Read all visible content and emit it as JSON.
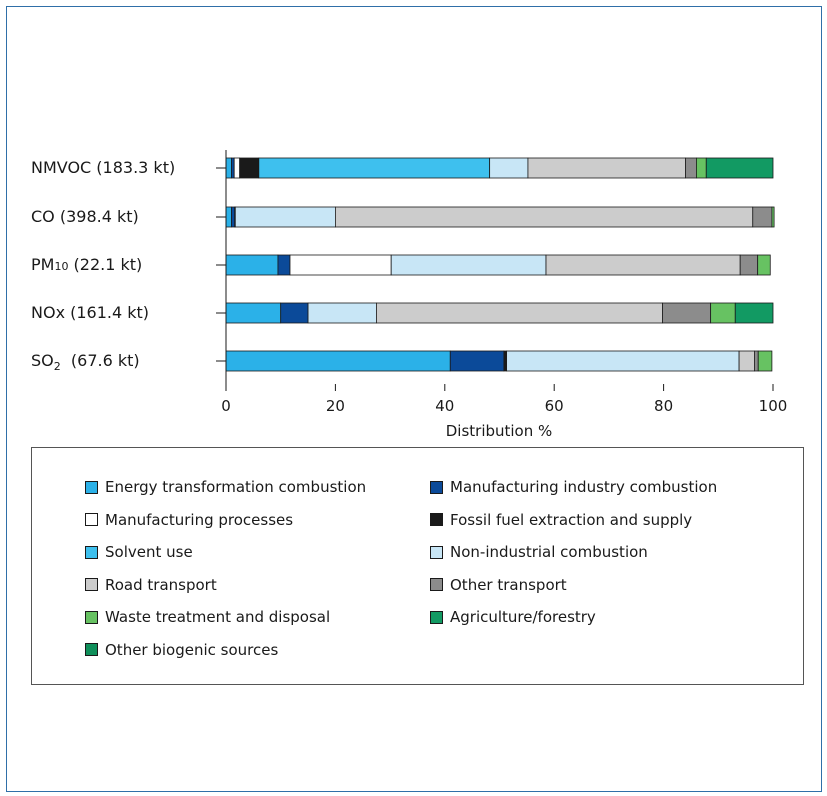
{
  "chart_data": {
    "type": "bar",
    "orientation": "horizontal",
    "stacked": true,
    "categories": [
      {
        "name": "NMVOC",
        "value": "(183.3 kt)"
      },
      {
        "name": "CO",
        "value": "(398.4 kt)"
      },
      {
        "name": "PM",
        "sub": "10",
        "value": "(22.1 kt)"
      },
      {
        "name": "NOx",
        "value": "(161.4 kt)"
      },
      {
        "name": "SO",
        "sub": "2",
        "value": "(67.6 kt)"
      }
    ],
    "xlabel": "Distribution  %",
    "xlim": [
      0,
      100
    ],
    "xticks": [
      "0",
      "20",
      "40",
      "60",
      "80",
      "100"
    ],
    "grid": false,
    "legend_position": "bottom",
    "series": [
      {
        "name": "Energy transformation combustion",
        "color": "#2bb1e8",
        "values": [
          1.0,
          1.0,
          9.5,
          10.0,
          41.0
        ]
      },
      {
        "name": "Manufacturing industry combustion",
        "color": "#0b4a99",
        "values": [
          0.5,
          0.6,
          2.2,
          5.0,
          9.8
        ]
      },
      {
        "name": "Manufacturing processes",
        "color": "#ffffff",
        "values": [
          1.0,
          0.1,
          18.5,
          0.0,
          0.0
        ]
      },
      {
        "name": "Fossil fuel extraction and supply",
        "color": "#1a1a1a",
        "values": [
          3.5,
          0.0,
          0.0,
          0.0,
          0.5
        ]
      },
      {
        "name": "Solvent use",
        "color": "#3ec0ee",
        "values": [
          42.2,
          0.0,
          0.0,
          0.0,
          0.0
        ]
      },
      {
        "name": "Non-industrial combustion",
        "color": "#c8e6f6",
        "values": [
          7.0,
          18.3,
          28.3,
          12.5,
          42.5
        ]
      },
      {
        "name": "Road transport",
        "color": "#cccccc",
        "values": [
          28.8,
          76.3,
          35.5,
          52.3,
          2.8
        ]
      },
      {
        "name": "Other transport",
        "color": "#8c8c8c",
        "values": [
          2.0,
          3.5,
          3.2,
          8.8,
          0.7
        ]
      },
      {
        "name": "Waste treatment and disposal",
        "color": "#67c262",
        "values": [
          1.8,
          0.4,
          2.3,
          4.5,
          2.5
        ]
      },
      {
        "name": "Agriculture/forestry",
        "color": "#129a63",
        "values": [
          12.2,
          0.0,
          0.0,
          6.9,
          0.0
        ]
      },
      {
        "name": "Other biogenic sources",
        "color": "#0f8f5a",
        "values": [
          0.0,
          0.0,
          0.0,
          0.0,
          0.0
        ]
      }
    ]
  },
  "legend": {
    "items": [
      {
        "label": "Energy transformation combustion",
        "color": "#2bb1e8"
      },
      {
        "label": "Manufacturing industry combustion",
        "color": "#0b4a99"
      },
      {
        "label": "Manufacturing processes",
        "color": "#ffffff"
      },
      {
        "label": "Fossil fuel extraction and supply",
        "color": "#1a1a1a"
      },
      {
        "label": "Solvent use",
        "color": "#3ec0ee"
      },
      {
        "label": "Non-industrial combustion",
        "color": "#c8e6f6"
      },
      {
        "label": "Road transport",
        "color": "#cccccc"
      },
      {
        "label": "Other transport",
        "color": "#8c8c8c"
      },
      {
        "label": "Waste treatment and disposal",
        "color": "#67c262"
      },
      {
        "label": "Agriculture/forestry",
        "color": "#129a63"
      },
      {
        "label": "Other biogenic sources",
        "color": "#0f8f5a"
      }
    ]
  }
}
